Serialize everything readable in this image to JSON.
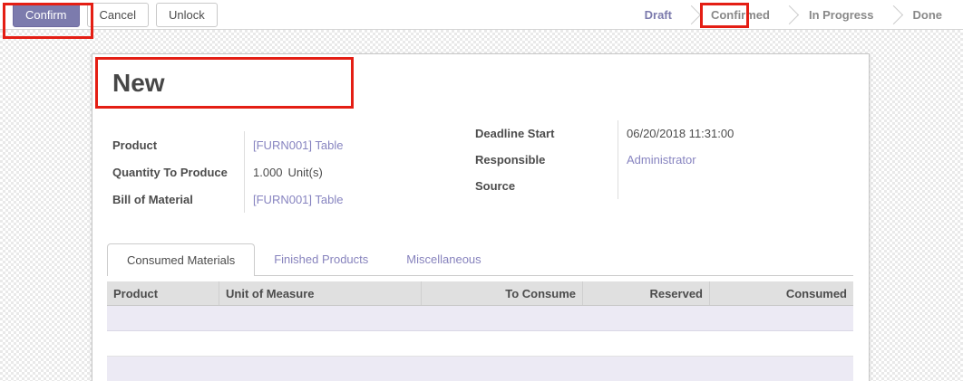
{
  "colors": {
    "accent": "#7c7bad",
    "link": "#8784c0",
    "annotation_red": "#e41e14",
    "row_shaded": "#eceaf4",
    "table_header_bg": "#e0e0e0"
  },
  "toolbar": {
    "confirm_label": "Confirm",
    "cancel_label": "Cancel",
    "unlock_label": "Unlock"
  },
  "statusbar": {
    "items": [
      {
        "label": "Draft",
        "active": true
      },
      {
        "label": "Confirmed",
        "active": false
      },
      {
        "label": "In Progress",
        "active": false
      },
      {
        "label": "Done",
        "active": false
      }
    ]
  },
  "sheet": {
    "title": "New",
    "fields": {
      "left": [
        {
          "label": "Product",
          "value": "[FURN001] Table"
        },
        {
          "label": "Quantity To Produce",
          "value": "1.000",
          "suffix": "Unit(s)"
        },
        {
          "label": "Bill of Material",
          "value": "[FURN001] Table"
        }
      ],
      "right": [
        {
          "label": "Deadline Start",
          "value": "06/20/2018 11:31:00"
        },
        {
          "label": "Responsible",
          "value": "Administrator"
        },
        {
          "label": "Source",
          "value": ""
        }
      ]
    },
    "tabs": [
      {
        "label": "Consumed Materials",
        "active": true
      },
      {
        "label": "Finished Products",
        "active": false
      },
      {
        "label": "Miscellaneous",
        "active": false
      }
    ],
    "table": {
      "columns": [
        "Product",
        "Unit of Measure",
        "To Consume",
        "Reserved",
        "Consumed"
      ]
    }
  }
}
